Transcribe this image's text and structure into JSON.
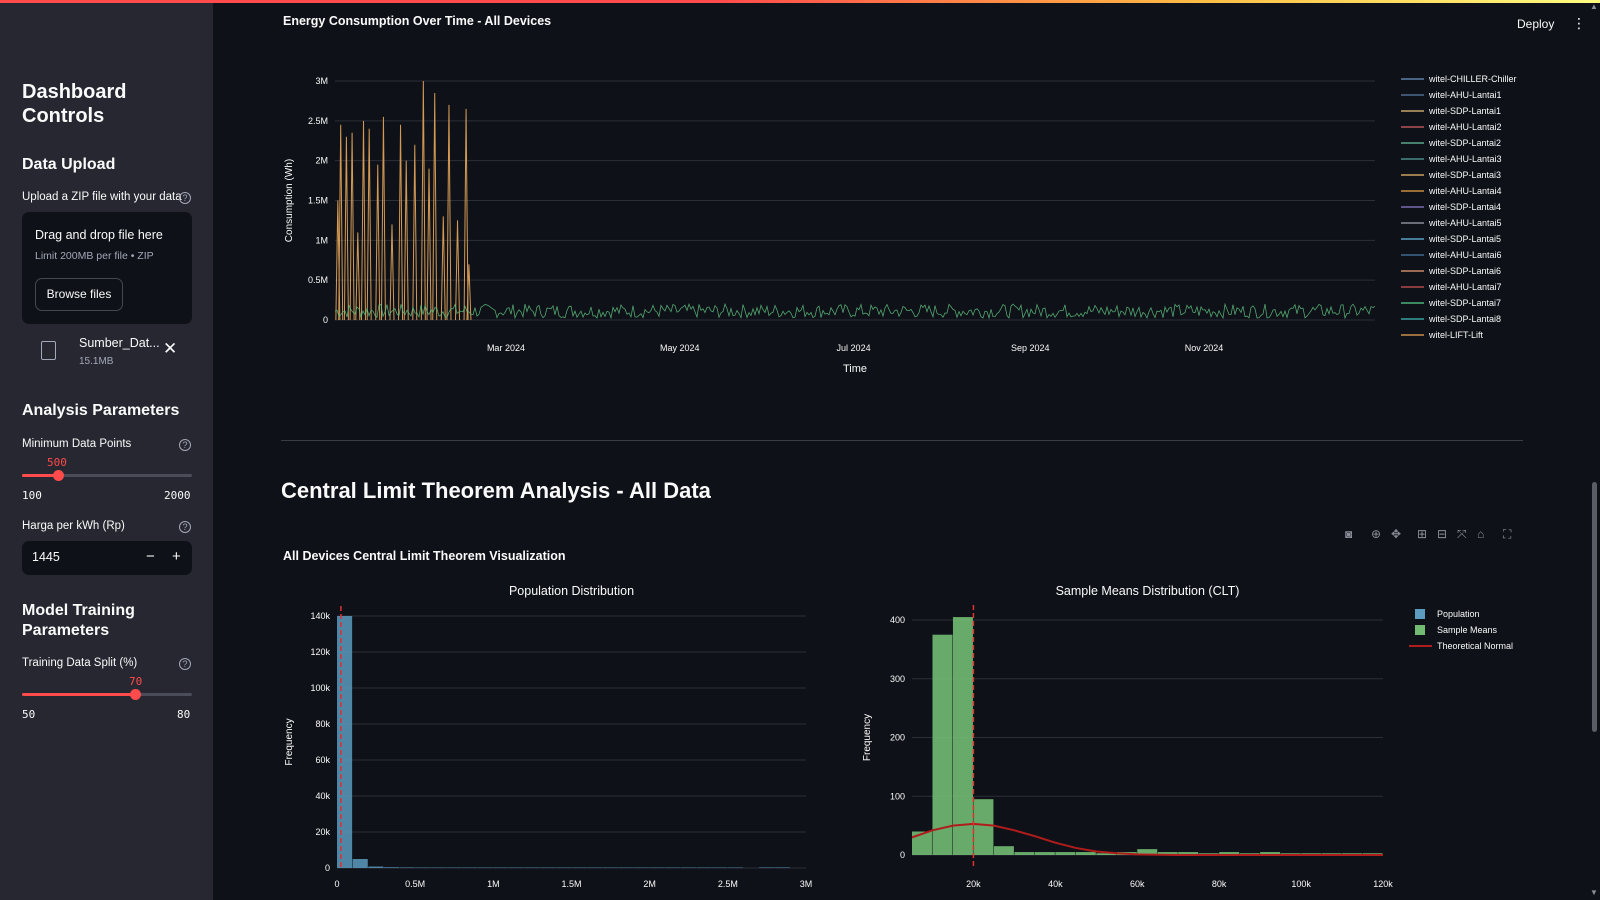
{
  "header": {
    "deploy_label": "Deploy",
    "menu_icon": "kebab-icon"
  },
  "sidebar": {
    "title": "Dashboard Controls",
    "data_upload": {
      "heading": "Data Upload",
      "label": "Upload a ZIP file with your data",
      "dropzone_main": "Drag and drop file here",
      "dropzone_sub": "Limit 200MB per file • ZIP",
      "browse_label": "Browse files",
      "file_name": "Sumber_Dat...",
      "file_size": "15.1MB"
    },
    "analysis": {
      "heading": "Analysis Parameters",
      "min_points_label": "Minimum Data Points",
      "min_points_value": "500",
      "min_points_min": "100",
      "min_points_max": "2000",
      "min_points_fraction": 0.21,
      "price_label": "Harga per kWh (Rp)",
      "price_value": "1445",
      "minus": "−",
      "plus": "+"
    },
    "model": {
      "heading": "Model Training Parameters",
      "split_label": "Training Data Split (%)",
      "split_value": "70",
      "split_min": "50",
      "split_max": "80",
      "split_fraction": 0.667
    }
  },
  "main": {
    "section_title": "Central Limit Theorem Analysis - All Data",
    "clt_title": "All Devices Central Limit Theorem Visualization"
  },
  "chart_data": [
    {
      "type": "line",
      "title": "Energy Consumption Over Time - All Devices",
      "xlabel": "Time",
      "ylabel": "Consumption (Wh)",
      "x_ticks": [
        "Mar 2024",
        "May 2024",
        "Jul 2024",
        "Sep 2024",
        "Nov 2024"
      ],
      "y_ticks": [
        "0",
        "0.5M",
        "1M",
        "1.5M",
        "2M",
        "2.5M",
        "3M"
      ],
      "ylim": [
        0,
        3000000
      ],
      "xlim": [
        "2024-01-01",
        "2024-12-31"
      ],
      "legend_placement": "right",
      "legend": [
        "witel-CHILLER-Chiller",
        "witel-AHU-Lantai1",
        "witel-SDP-Lantai1",
        "witel-AHU-Lantai2",
        "witel-SDP-Lantai2",
        "witel-AHU-Lantai3",
        "witel-SDP-Lantai3",
        "witel-AHU-Lantai4",
        "witel-SDP-Lantai4",
        "witel-AHU-Lantai5",
        "witel-SDP-Lantai5",
        "witel-AHU-Lantai6",
        "witel-SDP-Lantai6",
        "witel-AHU-Lantai7",
        "witel-SDP-Lantai7",
        "witel-SDP-Lantai8",
        "witel-LIFT-Lift"
      ],
      "legend_colors": [
        "#5b7fa8",
        "#4d6c8c",
        "#c9a36b",
        "#b5545c",
        "#5aa58a",
        "#4a8a8a",
        "#c9a060",
        "#c98a40",
        "#7a6cb0",
        "#8a8a99",
        "#5a9fc0",
        "#3f6a90",
        "#c98a6a",
        "#b04a4a",
        "#4bb07a",
        "#3aa0a0",
        "#c89050"
      ],
      "spikes": [
        {
          "date": "2024-01-02",
          "y": 1500000
        },
        {
          "date": "2024-01-03",
          "y": 2450000
        },
        {
          "date": "2024-01-05",
          "y": 2300000
        },
        {
          "date": "2024-01-07",
          "y": 2350000
        },
        {
          "date": "2024-01-09",
          "y": 1100000
        },
        {
          "date": "2024-01-11",
          "y": 2500000
        },
        {
          "date": "2024-01-13",
          "y": 2400000
        },
        {
          "date": "2024-01-16",
          "y": 1950000
        },
        {
          "date": "2024-01-18",
          "y": 2550000
        },
        {
          "date": "2024-01-21",
          "y": 1200000
        },
        {
          "date": "2024-01-24",
          "y": 2450000
        },
        {
          "date": "2024-01-26",
          "y": 2000000
        },
        {
          "date": "2024-01-29",
          "y": 2200000
        },
        {
          "date": "2024-02-01",
          "y": 3000000
        },
        {
          "date": "2024-02-03",
          "y": 1900000
        },
        {
          "date": "2024-02-05",
          "y": 2850000
        },
        {
          "date": "2024-02-08",
          "y": 1300000
        },
        {
          "date": "2024-02-10",
          "y": 2700000
        },
        {
          "date": "2024-02-13",
          "y": 1250000
        },
        {
          "date": "2024-02-16",
          "y": 2650000
        },
        {
          "date": "2024-02-17",
          "y": 700000
        }
      ]
    },
    {
      "type": "bar",
      "title": "Population Distribution",
      "xlabel": "",
      "ylabel": "Frequency",
      "x_ticks": [
        "0",
        "0.5M",
        "1M",
        "1.5M",
        "2M",
        "2.5M",
        "3M"
      ],
      "y_ticks": [
        "0",
        "20k",
        "40k",
        "60k",
        "80k",
        "100k",
        "120k",
        "140k"
      ],
      "xlim": [
        0,
        3000000
      ],
      "ylim": [
        0,
        140000
      ],
      "bin_width": 100000,
      "bins_start": [
        0,
        100000,
        200000,
        300000,
        400000,
        500000,
        600000,
        700000,
        800000,
        900000,
        1000000,
        1100000,
        1200000,
        1300000,
        1400000,
        1500000,
        1600000,
        1700000,
        1800000,
        1900000,
        2000000,
        2100000,
        2200000,
        2300000,
        2400000,
        2500000,
        2600000,
        2700000,
        2800000
      ],
      "values": [
        140000,
        5000,
        800,
        400,
        300,
        250,
        250,
        250,
        250,
        250,
        250,
        250,
        250,
        250,
        250,
        250,
        250,
        250,
        250,
        250,
        250,
        250,
        250,
        250,
        250,
        250,
        0,
        300,
        300
      ],
      "mean_line": 25000,
      "color": "#5b9bbf"
    },
    {
      "type": "bar",
      "title": "Sample Means Distribution (CLT)",
      "xlabel": "",
      "ylabel": "Frequency",
      "x_ticks": [
        "20k",
        "40k",
        "60k",
        "80k",
        "100k",
        "120k"
      ],
      "x_tick_values": [
        20000,
        40000,
        60000,
        80000,
        100000,
        120000
      ],
      "y_ticks": [
        "0",
        "100",
        "200",
        "300",
        "400"
      ],
      "xlim": [
        5000,
        120000
      ],
      "ylim": [
        0,
        400
      ],
      "bin_width": 5000,
      "bins_start": [
        5000,
        10000,
        15000,
        20000,
        25000,
        30000,
        35000,
        40000,
        45000,
        50000,
        55000,
        60000,
        65000,
        70000,
        75000,
        80000,
        85000,
        90000,
        95000,
        100000,
        105000,
        110000,
        115000
      ],
      "values": [
        40,
        375,
        405,
        95,
        15,
        5,
        5,
        5,
        5,
        3,
        5,
        10,
        5,
        5,
        3,
        5,
        3,
        5,
        3,
        3,
        3,
        3,
        3
      ],
      "mean_line": 20000,
      "normal_curve": [
        [
          5000,
          30
        ],
        [
          10000,
          42
        ],
        [
          15000,
          50
        ],
        [
          20000,
          53
        ],
        [
          25000,
          50
        ],
        [
          30000,
          42
        ],
        [
          35000,
          32
        ],
        [
          40000,
          21
        ],
        [
          45000,
          12
        ],
        [
          50000,
          6
        ],
        [
          55000,
          3
        ],
        [
          60000,
          1
        ],
        [
          70000,
          0
        ],
        [
          120000,
          0
        ]
      ],
      "legend": [
        "Population",
        "Sample Means",
        "Theoretical Normal"
      ],
      "legend_colors": [
        "#5b9bbf",
        "#72bb72",
        "#b01c1c"
      ],
      "legend_placement": "top-right",
      "color": "#72bb72"
    }
  ]
}
